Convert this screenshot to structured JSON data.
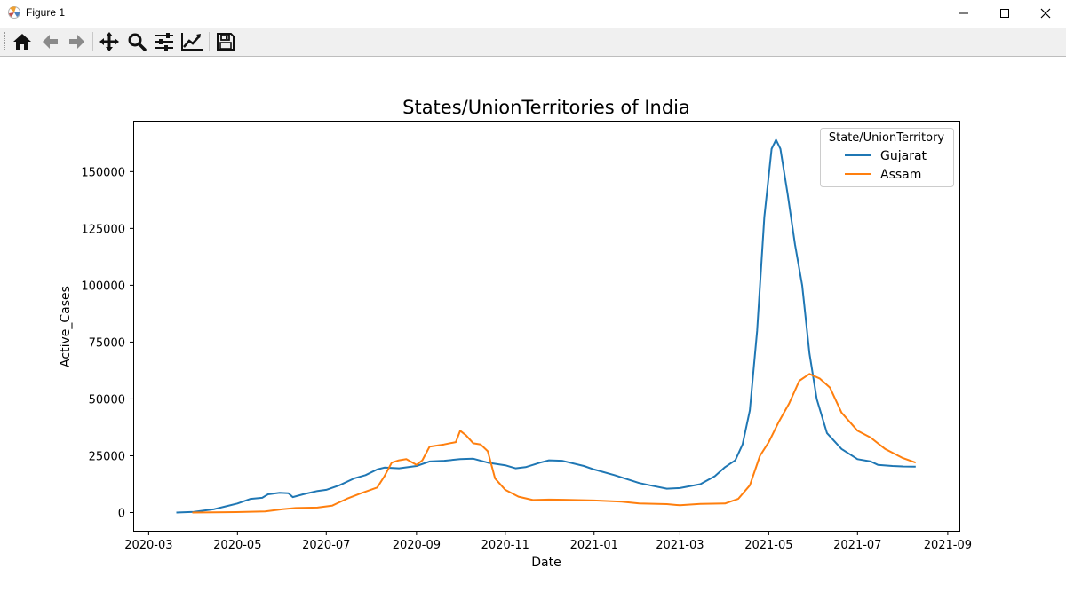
{
  "window": {
    "title": "Figure 1",
    "icon": "matplotlib-icon",
    "controls": [
      "minimize-icon",
      "maximize-icon",
      "close-icon"
    ]
  },
  "toolbar": {
    "buttons": [
      {
        "name": "home-button",
        "icon": "home-icon"
      },
      {
        "name": "back-button",
        "icon": "arrow-left-icon"
      },
      {
        "name": "forward-button",
        "icon": "arrow-right-icon"
      },
      {
        "name": "pan-button",
        "icon": "move-icon"
      },
      {
        "name": "zoom-button",
        "icon": "magnifier-icon"
      },
      {
        "name": "configure-subplots-button",
        "icon": "sliders-icon"
      },
      {
        "name": "edit-axis-button",
        "icon": "line-chart-icon"
      },
      {
        "name": "save-button",
        "icon": "floppy-disk-icon"
      }
    ]
  },
  "chart_data": {
    "type": "line",
    "title": "States/UnionTerritories of India",
    "xlabel": "Date",
    "ylabel": "Active_Cases",
    "xlim": [
      "2020-02-20",
      "2021-09-09"
    ],
    "ylim": [
      -8000,
      172000
    ],
    "xticks": [
      "2020-03",
      "2020-05",
      "2020-07",
      "2020-09",
      "2020-11",
      "2021-01",
      "2021-03",
      "2021-05",
      "2021-07",
      "2021-09"
    ],
    "yticks": [
      0,
      25000,
      50000,
      75000,
      100000,
      125000,
      150000
    ],
    "grid": false,
    "legend": {
      "title": "State/UnionTerritory",
      "placement": "upper right"
    },
    "series": [
      {
        "name": "Gujarat",
        "color": "#1f77b4",
        "points": [
          [
            "2020-03-20",
            0
          ],
          [
            "2020-04-01",
            300
          ],
          [
            "2020-04-15",
            1500
          ],
          [
            "2020-05-01",
            4000
          ],
          [
            "2020-05-10",
            6000
          ],
          [
            "2020-05-18",
            6500
          ],
          [
            "2020-05-22",
            8000
          ],
          [
            "2020-05-30",
            8700
          ],
          [
            "2020-06-05",
            8500
          ],
          [
            "2020-06-08",
            6800
          ],
          [
            "2020-06-15",
            8000
          ],
          [
            "2020-06-25",
            9500
          ],
          [
            "2020-07-01",
            10000
          ],
          [
            "2020-07-10",
            12000
          ],
          [
            "2020-07-20",
            15000
          ],
          [
            "2020-07-28",
            16500
          ],
          [
            "2020-08-05",
            19000
          ],
          [
            "2020-08-10",
            19800
          ],
          [
            "2020-08-20",
            19500
          ],
          [
            "2020-09-01",
            20500
          ],
          [
            "2020-09-10",
            22500
          ],
          [
            "2020-09-20",
            22800
          ],
          [
            "2020-10-01",
            23500
          ],
          [
            "2020-10-10",
            23700
          ],
          [
            "2020-10-20",
            22000
          ],
          [
            "2020-11-01",
            20800
          ],
          [
            "2020-11-08",
            19500
          ],
          [
            "2020-11-15",
            20000
          ],
          [
            "2020-11-25",
            22000
          ],
          [
            "2020-12-01",
            23000
          ],
          [
            "2020-12-10",
            22800
          ],
          [
            "2020-12-25",
            20500
          ],
          [
            "2021-01-01",
            19000
          ],
          [
            "2021-01-15",
            16500
          ],
          [
            "2021-02-01",
            13000
          ],
          [
            "2021-02-10",
            11800
          ],
          [
            "2021-02-20",
            10500
          ],
          [
            "2021-03-01",
            10800
          ],
          [
            "2021-03-15",
            12500
          ],
          [
            "2021-03-25",
            16000
          ],
          [
            "2021-04-01",
            20000
          ],
          [
            "2021-04-08",
            23000
          ],
          [
            "2021-04-13",
            30000
          ],
          [
            "2021-04-18",
            45000
          ],
          [
            "2021-04-23",
            80000
          ],
          [
            "2021-04-28",
            130000
          ],
          [
            "2021-05-03",
            160000
          ],
          [
            "2021-05-06",
            164000
          ],
          [
            "2021-05-09",
            160000
          ],
          [
            "2021-05-14",
            140000
          ],
          [
            "2021-05-19",
            118000
          ],
          [
            "2021-05-24",
            100000
          ],
          [
            "2021-05-29",
            70000
          ],
          [
            "2021-06-03",
            50000
          ],
          [
            "2021-06-10",
            35000
          ],
          [
            "2021-06-20",
            28000
          ],
          [
            "2021-07-01",
            23500
          ],
          [
            "2021-07-10",
            22500
          ],
          [
            "2021-07-15",
            21000
          ],
          [
            "2021-07-25",
            20500
          ],
          [
            "2021-08-01",
            20300
          ],
          [
            "2021-08-10",
            20200
          ]
        ]
      },
      {
        "name": "Assam",
        "color": "#ff7f0e",
        "points": [
          [
            "2020-03-31",
            0
          ],
          [
            "2020-04-30",
            200
          ],
          [
            "2020-05-20",
            500
          ],
          [
            "2020-06-01",
            1500
          ],
          [
            "2020-06-10",
            2000
          ],
          [
            "2020-06-25",
            2200
          ],
          [
            "2020-07-05",
            3000
          ],
          [
            "2020-07-15",
            6000
          ],
          [
            "2020-07-25",
            8500
          ],
          [
            "2020-08-05",
            11000
          ],
          [
            "2020-08-10",
            16000
          ],
          [
            "2020-08-15",
            22000
          ],
          [
            "2020-08-20",
            23000
          ],
          [
            "2020-08-25",
            23500
          ],
          [
            "2020-09-01",
            21000
          ],
          [
            "2020-09-05",
            23000
          ],
          [
            "2020-09-10",
            29000
          ],
          [
            "2020-09-20",
            30000
          ],
          [
            "2020-09-28",
            31000
          ],
          [
            "2020-10-01",
            36000
          ],
          [
            "2020-10-05",
            34000
          ],
          [
            "2020-10-10",
            30500
          ],
          [
            "2020-10-15",
            30000
          ],
          [
            "2020-10-20",
            27000
          ],
          [
            "2020-10-25",
            15000
          ],
          [
            "2020-11-01",
            10000
          ],
          [
            "2020-11-10",
            7000
          ],
          [
            "2020-11-20",
            5500
          ],
          [
            "2020-12-01",
            5700
          ],
          [
            "2020-12-15",
            5600
          ],
          [
            "2021-01-01",
            5300
          ],
          [
            "2021-01-20",
            4800
          ],
          [
            "2021-02-01",
            4000
          ],
          [
            "2021-02-20",
            3700
          ],
          [
            "2021-03-01",
            3200
          ],
          [
            "2021-03-15",
            3800
          ],
          [
            "2021-04-01",
            4000
          ],
          [
            "2021-04-10",
            6000
          ],
          [
            "2021-04-18",
            12000
          ],
          [
            "2021-04-25",
            25000
          ],
          [
            "2021-05-01",
            31000
          ],
          [
            "2021-05-08",
            40000
          ],
          [
            "2021-05-15",
            48000
          ],
          [
            "2021-05-22",
            58000
          ],
          [
            "2021-05-29",
            61000
          ],
          [
            "2021-06-05",
            59000
          ],
          [
            "2021-06-12",
            55000
          ],
          [
            "2021-06-20",
            44000
          ],
          [
            "2021-07-01",
            36000
          ],
          [
            "2021-07-10",
            33000
          ],
          [
            "2021-07-20",
            28000
          ],
          [
            "2021-08-01",
            24000
          ],
          [
            "2021-08-10",
            22000
          ]
        ]
      }
    ]
  }
}
